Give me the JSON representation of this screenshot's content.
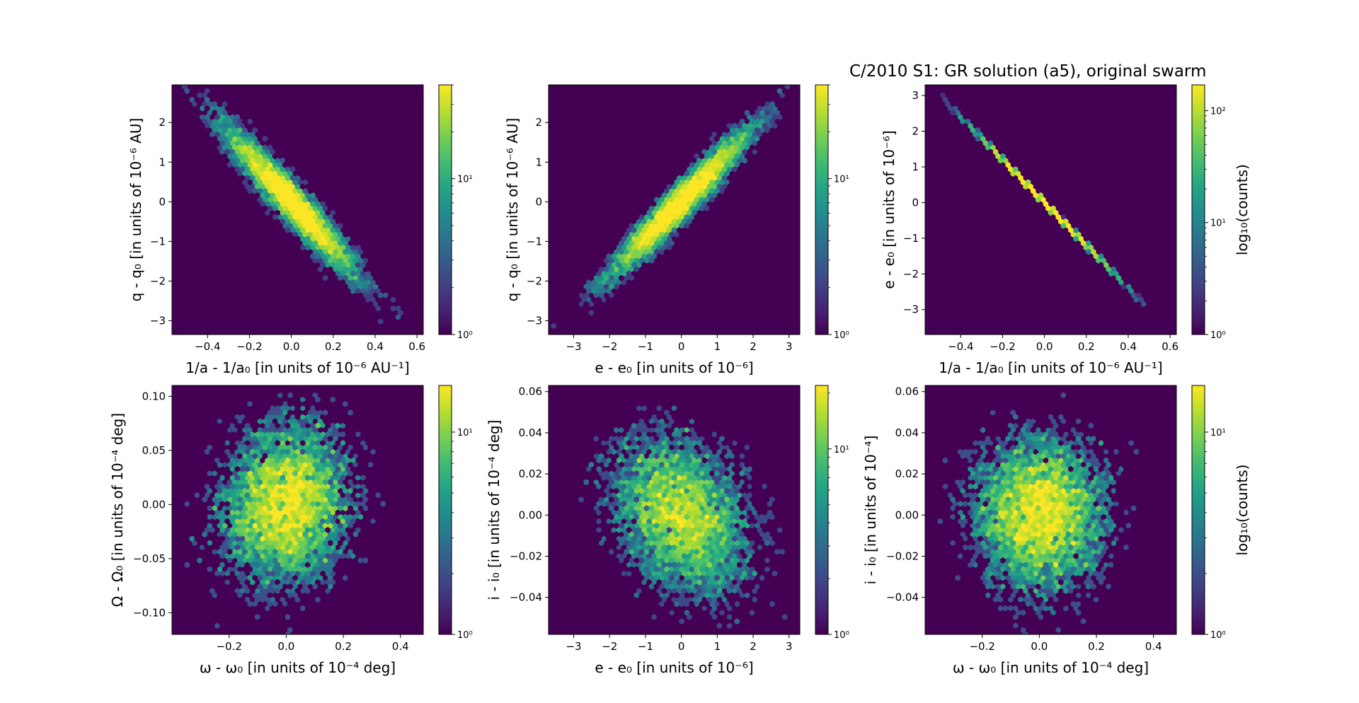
{
  "figure": {
    "title": "C/2010 S1: GR solution (a5), original swarm"
  },
  "chart_data": [
    {
      "type": "heatmap",
      "subtype": "hexbin",
      "panel": "top-left",
      "xlabel": "1/a - 1/a₀ [in units of 10⁻⁶ AU⁻¹]",
      "ylabel": "q - q₀ [in units of 10⁻⁶ AU]",
      "xlim": [
        -0.57,
        0.63
      ],
      "ylim": [
        -3.35,
        2.95
      ],
      "xticks": [
        "−0.4",
        "−0.2",
        "0.0",
        "0.2",
        "0.4",
        "0.6"
      ],
      "xtick_values": [
        -0.4,
        -0.2,
        0.0,
        0.2,
        0.4,
        0.6
      ],
      "yticks": [
        "−3",
        "−2",
        "−1",
        "0",
        "1",
        "2"
      ],
      "ytick_values": [
        -3,
        -2,
        -1,
        0,
        1,
        2
      ],
      "distribution": {
        "mean_x": 0.0,
        "mean_y": 0.0,
        "sd_x": 0.16,
        "sd_y": 0.95,
        "correlation": -0.95
      },
      "colorbar": {
        "scale": "log",
        "ticks": [
          "10¹",
          "10⁰"
        ],
        "tick_values": [
          10,
          1
        ],
        "range": [
          1,
          40
        ],
        "label": ""
      },
      "grid": false
    },
    {
      "type": "heatmap",
      "subtype": "hexbin",
      "panel": "top-middle",
      "xlabel": "e - e₀ [in units of 10⁻⁶]",
      "ylabel": "q - q₀ [in units of 10⁻⁶ AU]",
      "xlim": [
        -3.7,
        3.3
      ],
      "ylim": [
        -3.35,
        2.95
      ],
      "xticks": [
        "−3",
        "−2",
        "−1",
        "0",
        "1",
        "2",
        "3"
      ],
      "xtick_values": [
        -3,
        -2,
        -1,
        0,
        1,
        2,
        3
      ],
      "yticks": [
        "−3",
        "−2",
        "−1",
        "0",
        "1",
        "2"
      ],
      "ytick_values": [
        -3,
        -2,
        -1,
        0,
        1,
        2
      ],
      "distribution": {
        "mean_x": 0.0,
        "mean_y": 0.0,
        "sd_x": 1.0,
        "sd_y": 0.95,
        "correlation": 0.96
      },
      "colorbar": {
        "scale": "log",
        "ticks": [
          "10¹",
          "10⁰"
        ],
        "tick_values": [
          10,
          1
        ],
        "range": [
          1,
          40
        ],
        "label": ""
      },
      "grid": false
    },
    {
      "type": "heatmap",
      "subtype": "hexbin",
      "panel": "top-right",
      "xlabel": "1/a - 1/a₀ [in units of 10⁻⁶ AU⁻¹]",
      "ylabel": "e - e₀ [in units of 10⁻⁶]",
      "xlim": [
        -0.57,
        0.63
      ],
      "ylim": [
        -3.7,
        3.3
      ],
      "xticks": [
        "−0.4",
        "−0.2",
        "0.0",
        "0.2",
        "0.4",
        "0.6"
      ],
      "xtick_values": [
        -0.4,
        -0.2,
        0.0,
        0.2,
        0.4,
        0.6
      ],
      "yticks": [
        "−3",
        "−2",
        "−1",
        "0",
        "1",
        "2",
        "3"
      ],
      "ytick_values": [
        -3,
        -2,
        -1,
        0,
        1,
        2,
        3
      ],
      "distribution": {
        "mean_x": 0.0,
        "mean_y": 0.0,
        "sd_x": 0.16,
        "sd_y": 1.0,
        "correlation": -1.0,
        "slope": -6.0
      },
      "colorbar": {
        "scale": "log",
        "ticks": [
          "10²",
          "10¹",
          "10⁰"
        ],
        "tick_values": [
          100,
          10,
          1
        ],
        "range": [
          1,
          170
        ],
        "label": "log₁₀(counts)"
      },
      "grid": false
    },
    {
      "type": "heatmap",
      "subtype": "hexbin",
      "panel": "bottom-left",
      "xlabel": "ω - ω₀ [in units of 10⁻⁴ deg]",
      "ylabel": "Ω - Ω₀ [in units of 10⁻⁴ deg]",
      "xlim": [
        -0.4,
        0.48
      ],
      "ylim": [
        -0.12,
        0.11
      ],
      "xticks": [
        "−0.2",
        "0.0",
        "0.2",
        "0.4"
      ],
      "xtick_values": [
        -0.2,
        0.0,
        0.2,
        0.4
      ],
      "yticks": [
        "−0.10",
        "−0.05",
        "0.00",
        "0.05",
        "0.10"
      ],
      "ytick_values": [
        -0.1,
        -0.05,
        0.0,
        0.05,
        0.1
      ],
      "distribution": {
        "mean_x": 0.0,
        "mean_y": 0.0,
        "sd_x": 0.12,
        "sd_y": 0.04,
        "correlation": 0.1
      },
      "colorbar": {
        "scale": "log",
        "ticks": [
          "10¹",
          "10⁰"
        ],
        "tick_values": [
          10,
          1
        ],
        "range": [
          1,
          17
        ],
        "label": ""
      },
      "grid": false
    },
    {
      "type": "heatmap",
      "subtype": "hexbin",
      "panel": "bottom-middle",
      "xlabel": "e - e₀ [in units of 10⁻⁶]",
      "ylabel": "i - i₀ [in units of 10⁻⁴ deg]",
      "xlim": [
        -3.7,
        3.3
      ],
      "ylim": [
        -0.058,
        0.063
      ],
      "xticks": [
        "−3",
        "−2",
        "−1",
        "0",
        "1",
        "2",
        "3"
      ],
      "xtick_values": [
        -3,
        -2,
        -1,
        0,
        1,
        2,
        3
      ],
      "yticks": [
        "−0.04",
        "−0.02",
        "0.00",
        "0.02",
        "0.04",
        "0.06"
      ],
      "ytick_values": [
        -0.04,
        -0.02,
        0.0,
        0.02,
        0.04,
        0.06
      ],
      "distribution": {
        "mean_x": 0.0,
        "mean_y": 0.0,
        "sd_x": 1.0,
        "sd_y": 0.02,
        "correlation": -0.3
      },
      "colorbar": {
        "scale": "log",
        "ticks": [
          "10¹",
          "10⁰"
        ],
        "tick_values": [
          10,
          1
        ],
        "range": [
          1,
          22
        ],
        "label": ""
      },
      "grid": false
    },
    {
      "type": "heatmap",
      "subtype": "hexbin",
      "panel": "bottom-right",
      "xlabel": "ω - ω₀ [in units of 10⁻⁴ deg]",
      "ylabel": "i - i₀ [in units of 10⁻⁴]",
      "xlim": [
        -0.4,
        0.48
      ],
      "ylim": [
        -0.058,
        0.063
      ],
      "xticks": [
        "−0.2",
        "0.0",
        "0.2",
        "0.4"
      ],
      "xtick_values": [
        -0.2,
        0.0,
        0.2,
        0.4
      ],
      "yticks": [
        "−0.04",
        "−0.02",
        "0.00",
        "0.02",
        "0.04",
        "0.06"
      ],
      "ytick_values": [
        -0.04,
        -0.02,
        0.0,
        0.02,
        0.04,
        0.06
      ],
      "distribution": {
        "mean_x": 0.0,
        "mean_y": 0.0,
        "sd_x": 0.12,
        "sd_y": 0.02,
        "correlation": 0.0
      },
      "colorbar": {
        "scale": "log",
        "ticks": [
          "10¹",
          "10⁰"
        ],
        "tick_values": [
          10,
          1
        ],
        "range": [
          1,
          17
        ],
        "label": "log₁₀(counts)"
      },
      "grid": false
    }
  ]
}
